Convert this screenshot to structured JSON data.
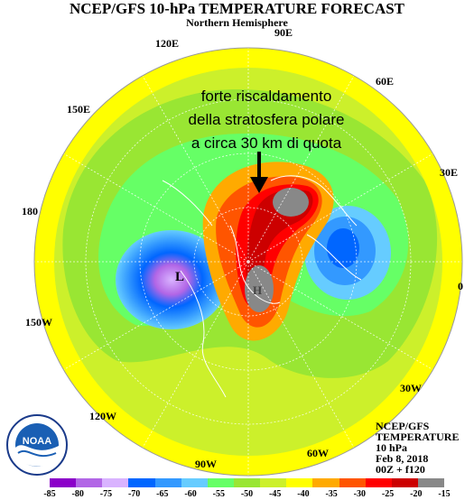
{
  "title": "NCEP/GFS 10-hPa TEMPERATURE FORECAST",
  "subtitle": "Northern Hemisphere",
  "longitude_labels": [
    "90E",
    "120E",
    "60E",
    "150E",
    "30E",
    "180",
    "0",
    "150W",
    "30W",
    "120W",
    "60W",
    "90W"
  ],
  "annotation": [
    "forte riscaldamento",
    "della stratosfera polare",
    "a circa 30 km di quota"
  ],
  "pressure_markers": [
    "L",
    "H"
  ],
  "info": [
    "NCEP/GFS",
    "TEMPERATURE",
    "10 hPa",
    "Feb 8, 2018",
    "00Z + f120"
  ],
  "logo_text": "NOAA",
  "colorbar": {
    "values": [
      "-85",
      "-80",
      "-75",
      "-70",
      "-65",
      "-60",
      "-55",
      "-50",
      "-45",
      "-40",
      "-35",
      "-30",
      "-25",
      "-20",
      "-15"
    ],
    "colors": [
      "#8b00c9",
      "#b266e6",
      "#d9b3ff",
      "#0066ff",
      "#3399ff",
      "#66ccff",
      "#66ff66",
      "#99e633",
      "#ccf02b",
      "#ffff00",
      "#ffaa00",
      "#ff5500",
      "#ff0000",
      "#cc0000",
      "#888888"
    ]
  }
}
